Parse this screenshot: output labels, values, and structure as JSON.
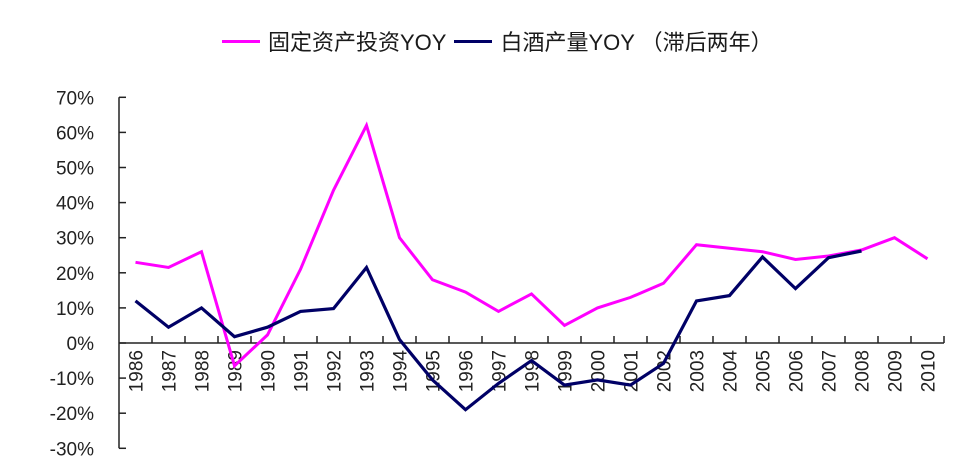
{
  "chart_data": {
    "type": "line",
    "title": "",
    "xlabel": "",
    "ylabel": "",
    "ylim": [
      -0.3,
      0.7
    ],
    "yticks": [
      "70%",
      "60%",
      "50%",
      "40%",
      "30%",
      "20%",
      "10%",
      "0%",
      "-10%",
      "-20%",
      "-30%"
    ],
    "grid": false,
    "legend_position": "top",
    "categories": [
      "1986",
      "1987",
      "1988",
      "1989",
      "1990",
      "1991",
      "1992",
      "1993",
      "1994",
      "1995",
      "1996",
      "1997",
      "1998",
      "1999",
      "2000",
      "2001",
      "2002",
      "2003",
      "2004",
      "2005",
      "2006",
      "2007",
      "2008",
      "2009",
      "2010"
    ],
    "series": [
      {
        "name": "固定资产投资YOY",
        "color": "#ff00ff",
        "values": [
          23,
          21.5,
          26,
          -6.5,
          2.3,
          21,
          43.5,
          62,
          30,
          18,
          14.5,
          9,
          14,
          5,
          10,
          13,
          17,
          28,
          27,
          26,
          23.8,
          24.8,
          26.5,
          30,
          24
        ]
      },
      {
        "name": "白酒产量YOY（滞后两年）",
        "color": "#000066",
        "values": [
          12,
          4.5,
          10,
          1.8,
          4.5,
          9,
          9.8,
          21.5,
          1,
          -10.5,
          -19,
          -11.5,
          -5,
          -12,
          -10.5,
          -12,
          -5.8,
          12,
          13.5,
          24.5,
          15.5,
          24.3,
          26.2,
          null,
          null
        ]
      }
    ],
    "unit": "%"
  },
  "legend": {
    "items": [
      {
        "label": "固定资产投资YOY",
        "color": "#ff00ff"
      },
      {
        "label": "白酒产量YOY （滞后两年）",
        "color": "#000066"
      }
    ]
  }
}
